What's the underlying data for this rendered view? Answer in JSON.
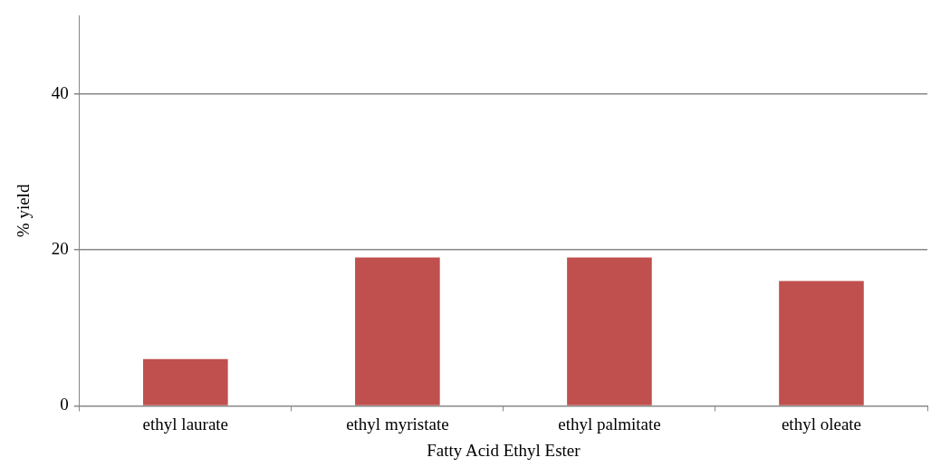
{
  "chart_data": {
    "type": "bar",
    "xlabel": "Fatty Acid Ethyl Ester",
    "ylabel": "% yield",
    "categories": [
      "ethyl laurate",
      "ethyl myristate",
      "ethyl palmitate",
      "ethyl oleate"
    ],
    "values": [
      6,
      19,
      19,
      16
    ],
    "color": "#c0504d",
    "ylim": [
      0,
      50
    ],
    "yticks": [
      0,
      20,
      40
    ],
    "grid": "y",
    "legend": false
  }
}
